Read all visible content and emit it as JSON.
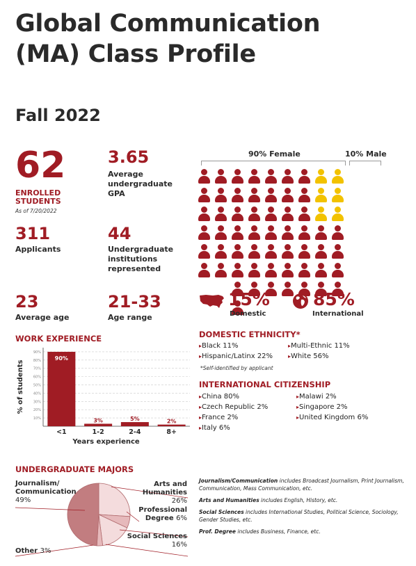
{
  "header": {
    "title_line1": "Global Communication",
    "title_line2": "(MA) Class Profile",
    "term": "Fall 2022"
  },
  "stats": {
    "enrolled_value": "62",
    "enrolled_label1": "ENROLLED",
    "enrolled_label2": "STUDENTS",
    "enrolled_note": "As of 7/20/2022",
    "gpa_value": "3.65",
    "gpa_label1": "Average",
    "gpa_label2": "undergraduate",
    "gpa_label3": "GPA",
    "applicants_value": "311",
    "applicants_label": "Applicants",
    "institutions_value": "44",
    "institutions_label1": "Undergraduate",
    "institutions_label2": "institutions",
    "institutions_label3": "represented",
    "avg_age_value": "23",
    "avg_age_label": "Average age",
    "age_range_value": "21-33",
    "age_range_label": "Age range"
  },
  "gender": {
    "female_label": "90% Female",
    "male_label": "10% Male",
    "female_share": 0.9,
    "male_share": 0.1
  },
  "origin": {
    "domestic_value": "15%",
    "domestic_label": "Domestic",
    "international_value": "85%",
    "international_label": "International"
  },
  "ethnicity": {
    "title": "DOMESTIC ETHNICITY*",
    "col1": [
      "Black 11%",
      "Hispanic/Latinx 22%"
    ],
    "col2": [
      "Multi-Ethnic 11%",
      "White 56%"
    ],
    "footnote": "*Self-identified by applicant"
  },
  "citizenship": {
    "title": "INTERNATIONAL CITIZENSHIP",
    "col1": [
      "China 80%",
      "Czech Republic 2%",
      "France 2%",
      "Italy 6%"
    ],
    "col2": [
      "Malawi 2%",
      "Singapore 2%",
      "United Kingdom 6%"
    ]
  },
  "work": {
    "title": "WORK EXPERIENCE"
  },
  "majors": {
    "title": "UNDERGRADUATE MAJORS",
    "label_journalism1": "Journalism/",
    "label_journalism2": "Communication",
    "pct_journalism": "49%",
    "label_arts1": "Arts and",
    "label_arts2": "Humanities",
    "pct_arts": "26%",
    "label_prof1": "Professional",
    "label_prof2": "Degree",
    "pct_prof": "6%",
    "label_social": "Social Sciences",
    "pct_social": "16%",
    "label_other": "Other",
    "pct_other": "3%",
    "note1_title": "Journalism/Communication",
    "note1_text": " includes Broadcast Journalism, Print Journalism, Communication, Mass Communication, etc.",
    "note2_title": "Arts and Humanities",
    "note2_text": " includes English, History, etc.",
    "note3_title": "Social Sciences",
    "note3_text": " includes International Studies, Political Science, Sociology, Gender Studies, etc.",
    "note4_title": "Prof. Degree",
    "note4_text": " includes Business, Finance, etc.",
    "colors": {
      "dark": "#c27d80",
      "mid": "#e6b9bb",
      "light": "#f4dcdd",
      "stroke": "#ffffff"
    }
  },
  "chart_data": [
    {
      "type": "bar",
      "title": "WORK EXPERIENCE",
      "categories": [
        "<1",
        "1-2",
        "2-4",
        "8+"
      ],
      "values": [
        90,
        3,
        5,
        2
      ],
      "data_labels": [
        "90%",
        "3%",
        "5%",
        "2%"
      ],
      "xlabel": "Years experience",
      "ylabel": "% of students",
      "ylim": [
        0,
        100
      ],
      "yticks": [
        "10%",
        "20%",
        "30%",
        "40%",
        "50%",
        "60%",
        "70%",
        "80%",
        "90%"
      ],
      "grid": true,
      "color": "#a01c24"
    },
    {
      "type": "pie",
      "title": "UNDERGRADUATE MAJORS",
      "categories": [
        "Journalism/Communication",
        "Arts and Humanities",
        "Professional Degree",
        "Social Sciences",
        "Other"
      ],
      "values": [
        49,
        26,
        6,
        16,
        3
      ]
    }
  ]
}
